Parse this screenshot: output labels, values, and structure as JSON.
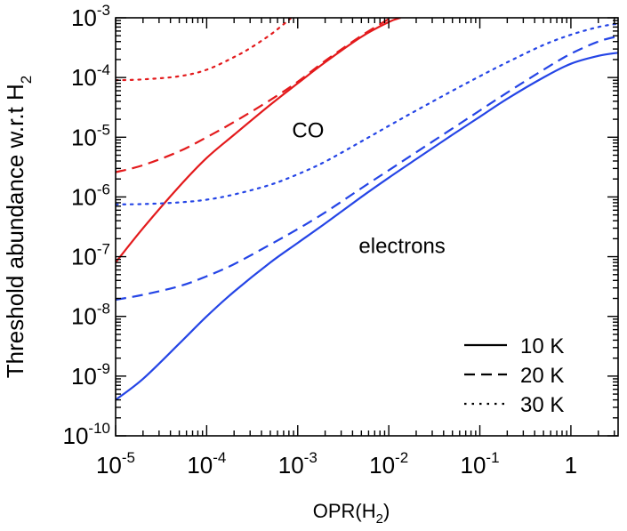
{
  "chart_data": {
    "type": "line",
    "x_scale": "log",
    "y_scale": "log",
    "xlim": [
      1e-05,
      3.3
    ],
    "ylim": [
      1e-10,
      0.001
    ],
    "xlabel": {
      "base": "OPR(H",
      "sub": "2",
      "tail": ")"
    },
    "ylabel": {
      "base": "Threshold abundance w.r.t H",
      "sub": "2"
    },
    "x_ticks": [
      {
        "value": 1e-05,
        "base": "10",
        "exp": "-5"
      },
      {
        "value": 0.0001,
        "base": "10",
        "exp": "-4"
      },
      {
        "value": 0.001,
        "base": "10",
        "exp": "-3"
      },
      {
        "value": 0.01,
        "base": "10",
        "exp": "-2"
      },
      {
        "value": 0.1,
        "base": "10",
        "exp": "-1"
      },
      {
        "value": 1,
        "base": "1",
        "exp": ""
      }
    ],
    "y_ticks": [
      {
        "value": 1e-10,
        "base": "10",
        "exp": "-10"
      },
      {
        "value": 1e-09,
        "base": "10",
        "exp": "-9"
      },
      {
        "value": 1e-08,
        "base": "10",
        "exp": "-8"
      },
      {
        "value": 1e-07,
        "base": "10",
        "exp": "-7"
      },
      {
        "value": 1e-06,
        "base": "10",
        "exp": "-6"
      },
      {
        "value": 1e-05,
        "base": "10",
        "exp": "-5"
      },
      {
        "value": 0.0001,
        "base": "10",
        "exp": "-4"
      },
      {
        "value": 0.001,
        "base": "10",
        "exp": "-3"
      }
    ],
    "annotations": [
      {
        "text": "CO",
        "color": "#e31a1c",
        "x": 0.0013,
        "y": 1.3e-05
      },
      {
        "text": "electrons",
        "color": "#2545e6",
        "x": 0.014,
        "y": 1.5e-07
      }
    ],
    "legend": {
      "position": "bottom-right",
      "entries": [
        {
          "label": "10 K",
          "dash": "solid"
        },
        {
          "label": "20 K",
          "dash": "dashed"
        },
        {
          "label": "30 K",
          "dash": "dotted"
        }
      ]
    },
    "colors": {
      "CO": "#e31a1c",
      "electrons": "#2545e6"
    },
    "series": [
      {
        "group": "CO",
        "temperature": "10 K",
        "dash": "solid",
        "color": "#e31a1c",
        "x": [
          1e-05,
          2e-05,
          5e-05,
          0.0001,
          0.0002,
          0.0005,
          0.001,
          0.002,
          0.005,
          0.01,
          0.0135
        ],
        "y": [
          8e-08,
          3e-07,
          1.5e-06,
          4.5e-06,
          1.1e-05,
          3.5e-05,
          8e-05,
          0.00018,
          0.00048,
          0.00085,
          0.001
        ]
      },
      {
        "group": "CO",
        "temperature": "20 K",
        "dash": "dashed",
        "color": "#e31a1c",
        "x": [
          1e-05,
          2e-05,
          5e-05,
          0.0001,
          0.0002,
          0.0005,
          0.001,
          0.002,
          0.005,
          0.0105
        ],
        "y": [
          2.6e-06,
          3.4e-06,
          5.8e-06,
          1e-05,
          1.8e-05,
          4.2e-05,
          8.5e-05,
          0.00019,
          0.0005,
          0.001
        ]
      },
      {
        "group": "CO",
        "temperature": "30 K",
        "dash": "dotted",
        "color": "#e31a1c",
        "x": [
          1e-05,
          2e-05,
          5e-05,
          0.0001,
          0.0002,
          0.0003,
          0.0005,
          0.0007,
          0.00085
        ],
        "y": [
          9e-05,
          9.3e-05,
          0.000105,
          0.000135,
          0.00022,
          0.00031,
          0.00052,
          0.00078,
          0.001
        ]
      },
      {
        "group": "electrons",
        "temperature": "10 K",
        "dash": "solid",
        "color": "#2545e6",
        "x": [
          1e-05,
          2e-05,
          5e-05,
          0.0001,
          0.0002,
          0.0005,
          0.001,
          0.002,
          0.005,
          0.01,
          0.02,
          0.05,
          0.1,
          0.2,
          0.5,
          1,
          2,
          3.3
        ],
        "y": [
          4e-10,
          9e-10,
          3.5e-09,
          1e-08,
          2.6e-08,
          8e-08,
          1.7e-07,
          3.6e-07,
          1e-06,
          2.1e-06,
          4.3e-06,
          1.1e-05,
          2.2e-05,
          4.4e-05,
          0.0001,
          0.00017,
          0.00023,
          0.00026
        ]
      },
      {
        "group": "electrons",
        "temperature": "20 K",
        "dash": "dashed",
        "color": "#2545e6",
        "x": [
          1e-05,
          2e-05,
          5e-05,
          0.0001,
          0.0002,
          0.0005,
          0.001,
          0.002,
          0.005,
          0.01,
          0.02,
          0.05,
          0.1,
          0.2,
          0.5,
          1,
          2,
          3.3
        ],
        "y": [
          1.9e-08,
          2.3e-08,
          3.2e-08,
          4.7e-08,
          7.5e-08,
          1.6e-07,
          2.9e-07,
          5.5e-07,
          1.4e-06,
          2.8e-06,
          5.6e-06,
          1.4e-05,
          2.8e-05,
          5.6e-05,
          0.000135,
          0.00025,
          0.0004,
          0.00049
        ]
      },
      {
        "group": "electrons",
        "temperature": "30 K",
        "dash": "dotted",
        "color": "#2545e6",
        "x": [
          1e-05,
          2e-05,
          5e-05,
          0.0001,
          0.0002,
          0.0005,
          0.001,
          0.002,
          0.005,
          0.01,
          0.02,
          0.05,
          0.1,
          0.2,
          0.5,
          1,
          2,
          3.3
        ],
        "y": [
          7.5e-07,
          7.6e-07,
          8.1e-07,
          9e-07,
          1.1e-06,
          1.6e-06,
          2.4e-06,
          3.9e-06,
          8.5e-06,
          1.55e-05,
          2.8e-05,
          6e-05,
          0.000105,
          0.00018,
          0.00035,
          0.00052,
          0.0007,
          0.0008
        ]
      }
    ]
  }
}
